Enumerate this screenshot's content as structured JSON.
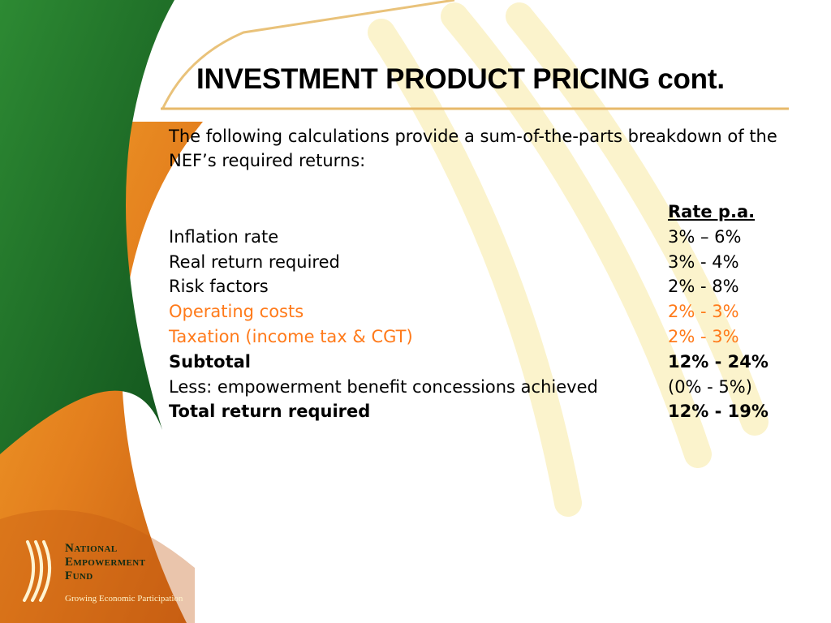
{
  "title": "INVESTMENT PRODUCT PRICING cont.",
  "intro": "The following calculations provide a sum-of-the-parts breakdown of the NEF’s required returns:",
  "table": {
    "header": "Rate p.a.",
    "rows": [
      {
        "label": "Inflation rate",
        "rate": "3% – 6%",
        "style": "normal"
      },
      {
        "label": "Real return required",
        "rate": "3% - 4%",
        "style": "normal"
      },
      {
        "label": "Risk factors",
        "rate": "2% - 8%",
        "style": "normal"
      },
      {
        "label": "Operating costs",
        "rate": "2% - 3%",
        "style": "orange"
      },
      {
        "label": "Taxation (income tax & CGT)",
        "rate": "2% - 3%",
        "style": "orange"
      },
      {
        "label": "Subtotal",
        "rate": "12% - 24%",
        "style": "bold"
      },
      {
        "label": "Less: empowerment benefit concessions achieved",
        "rate": "(0% - 5%)",
        "style": "normal"
      },
      {
        "label": "Total return required",
        "rate": "12% - 19%",
        "style": "bold"
      }
    ]
  },
  "logo": {
    "line1": "National",
    "line2": "Empowerment",
    "line3": "Fund",
    "tagline": "Growing Economic Participation"
  },
  "colors": {
    "green": "#1f6b2a",
    "orange": "#e07a1c",
    "accent_text": "#ff7a1a",
    "watermark": "#fbf2c4"
  }
}
